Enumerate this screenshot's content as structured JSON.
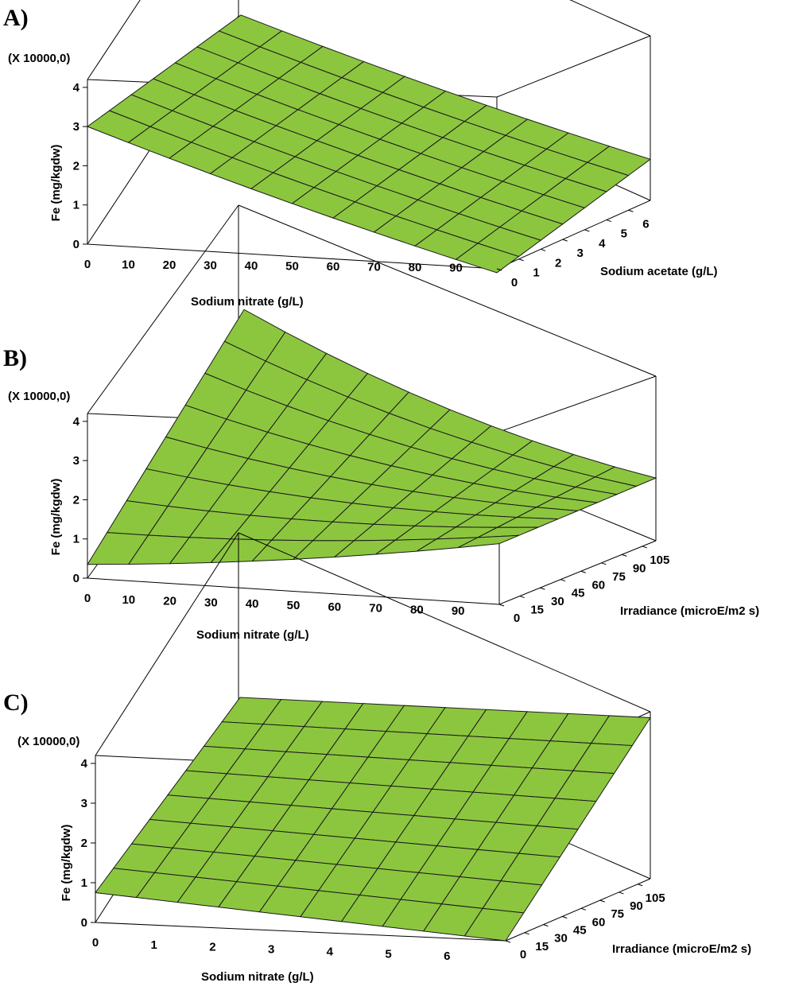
{
  "chart_data": [
    {
      "type": "surface",
      "panel": "A)",
      "scale_note": "(X 10000,0)",
      "x_label": "Sodium nitrate (g/L)",
      "x_ticks": [
        "0",
        "10",
        "20",
        "30",
        "40",
        "50",
        "60",
        "70",
        "80",
        "90"
      ],
      "z_label": "Sodium acetate (g/L)",
      "z_ticks": [
        "0",
        "1",
        "2",
        "3",
        "4",
        "5",
        "6"
      ],
      "y_label": "Fe (mg/kgdw)",
      "y_ticks": [
        "0",
        "1",
        "2",
        "3",
        "4"
      ],
      "xlim": [
        0,
        100
      ],
      "zlim": [
        0,
        7
      ],
      "ylim": [
        0,
        4.2
      ],
      "surface": {
        "x": [
          0,
          100
        ],
        "z": [
          0,
          7
        ],
        "corners": {
          "x0_z0": 3.0,
          "x100_z0": -0.1,
          "x0_z7": 4.1,
          "x100_z7": 1.05
        },
        "curvature": 0.5,
        "x_lines": 10,
        "z_lines": 7
      }
    },
    {
      "type": "surface",
      "panel": "B)",
      "scale_note": "(X 10000,0)",
      "x_label": "Sodium nitrate (g/L)",
      "x_ticks": [
        "0",
        "10",
        "20",
        "30",
        "40",
        "50",
        "60",
        "70",
        "80",
        "90"
      ],
      "z_label": "Irradiance (microE/m2 s)",
      "z_ticks": [
        "0",
        "15",
        "30",
        "45",
        "60",
        "75",
        "90",
        "105"
      ],
      "y_label": "Fe (mg/kgdw)",
      "y_ticks": [
        "0",
        "1",
        "2",
        "3",
        "4"
      ],
      "xlim": [
        0,
        100
      ],
      "zlim": [
        0,
        115
      ],
      "ylim": [
        0,
        4.2
      ],
      "surface": {
        "x": [
          0,
          100
        ],
        "z": [
          0,
          115
        ],
        "corners": {
          "x0_z0": 0.35,
          "x100_z0": 1.55,
          "x0_z115": 4.15,
          "x100_z115": 1.6
        },
        "curvature": 0.9,
        "x_lines": 10,
        "z_lines": 8
      }
    },
    {
      "type": "surface",
      "panel": "C)",
      "scale_note": "(X 10000,0)",
      "x_label": "Sodium nitrate (g/L)",
      "x_ticks": [
        "0",
        "1",
        "2",
        "3",
        "4",
        "5",
        "6"
      ],
      "z_label": "Irradiance (microE/m2 s)",
      "z_ticks": [
        "0",
        "15",
        "30",
        "45",
        "60",
        "75",
        "90",
        "105"
      ],
      "y_label": "Fe (mg/kgdw)",
      "y_ticks": [
        "0",
        "1",
        "2",
        "3",
        "4"
      ],
      "xlim": [
        0,
        7
      ],
      "zlim": [
        0,
        115
      ],
      "ylim": [
        0,
        4.2
      ],
      "surface": {
        "x": [
          0,
          7
        ],
        "z": [
          0,
          115
        ],
        "corners": {
          "x0_z0": 0.75,
          "x7_z0": 0.0,
          "x0_z115": 4.1,
          "x7_z115": 4.05
        },
        "curvature": 0.0,
        "x_lines": 10,
        "z_lines": 8
      }
    }
  ]
}
